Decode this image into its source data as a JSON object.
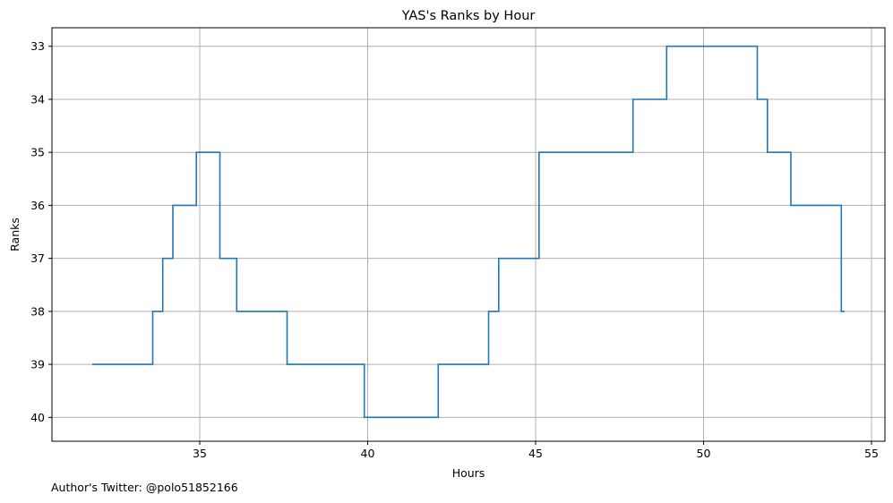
{
  "footnote": "Author's Twitter: @polo51852166",
  "chart_data": {
    "type": "line",
    "step": "post",
    "title": "YAS's Ranks by Hour",
    "xlabel": "Hours",
    "ylabel": "Ranks",
    "xlim": [
      30.6,
      55.4
    ],
    "ylim": [
      40.45,
      32.65
    ],
    "y_inverted": true,
    "xticks": [
      35,
      40,
      45,
      50,
      55
    ],
    "yticks": [
      33,
      34,
      35,
      36,
      37,
      38,
      39,
      40
    ],
    "grid": true,
    "line_color": "#1f77b4",
    "series": [
      {
        "x": [
          31.8,
          33.6,
          33.9,
          34.2,
          34.9,
          35.6,
          36.1,
          37.6,
          39.9,
          42.1,
          43.6,
          43.9,
          45.1,
          47.9,
          48.9,
          51.6,
          51.9,
          52.6,
          54.1,
          54.2
        ],
        "y": [
          39,
          38,
          37,
          36,
          35,
          37,
          38,
          39,
          40,
          39,
          38,
          37,
          35,
          34,
          33,
          34,
          35,
          36,
          38,
          38
        ]
      }
    ]
  }
}
